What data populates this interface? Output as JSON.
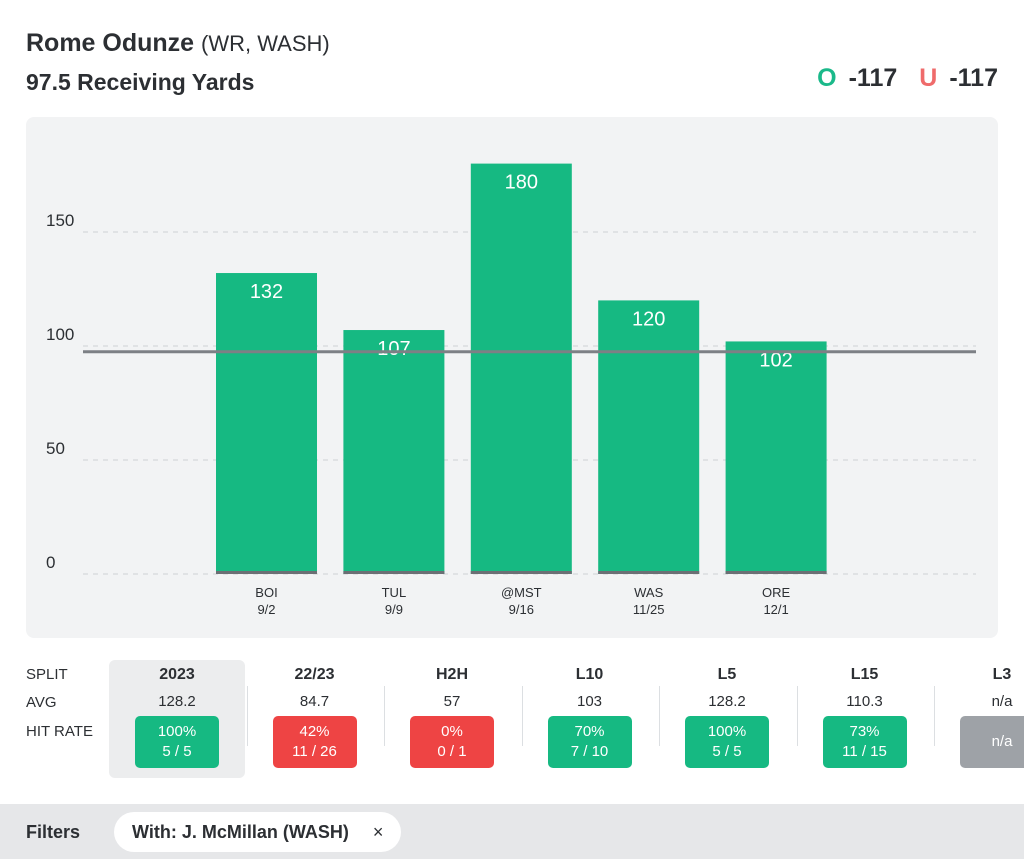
{
  "header": {
    "player": "Rome Odunze",
    "meta": "(WR, WASH)",
    "prop": "97.5 Receiving Yards",
    "over_letter": "O",
    "over_odds": "-117",
    "under_letter": "U",
    "under_odds": "-117"
  },
  "colors": {
    "bar": "#16b982",
    "over": "#1bb98a",
    "under": "#ef6b6b",
    "red": "#ee4444",
    "gray": "#9ea2a7"
  },
  "chart_data": {
    "type": "bar",
    "categories": [
      "BOI",
      "TUL",
      "@MST",
      "WAS",
      "ORE"
    ],
    "dates": [
      "9/2",
      "9/9",
      "9/16",
      "11/25",
      "12/1"
    ],
    "values": [
      132,
      107,
      180,
      120,
      102
    ],
    "yticks": [
      0,
      50,
      100,
      150
    ],
    "ylim": [
      0,
      200
    ],
    "line_value": 97.5
  },
  "splits": {
    "labels": {
      "split": "SPLIT",
      "avg": "AVG",
      "hit_rate": "HIT RATE"
    },
    "columns": [
      {
        "name": "2023",
        "avg": "128.2",
        "pct": "100%",
        "ratio": "5 / 5",
        "status": "green"
      },
      {
        "name": "22/23",
        "avg": "84.7",
        "pct": "42%",
        "ratio": "11 / 26",
        "status": "red"
      },
      {
        "name": "H2H",
        "avg": "57",
        "pct": "0%",
        "ratio": "0 / 1",
        "status": "red"
      },
      {
        "name": "L10",
        "avg": "103",
        "pct": "70%",
        "ratio": "7 / 10",
        "status": "green"
      },
      {
        "name": "L5",
        "avg": "128.2",
        "pct": "100%",
        "ratio": "5 / 5",
        "status": "green"
      },
      {
        "name": "L15",
        "avg": "110.3",
        "pct": "73%",
        "ratio": "11 / 15",
        "status": "green"
      },
      {
        "name": "L3",
        "avg": "n/a",
        "pct": "n/a",
        "ratio": "",
        "status": "gray"
      }
    ]
  },
  "filters": {
    "label": "Filters",
    "chip_label": "With: J. McMillan (WASH)",
    "chip_close": "×"
  }
}
